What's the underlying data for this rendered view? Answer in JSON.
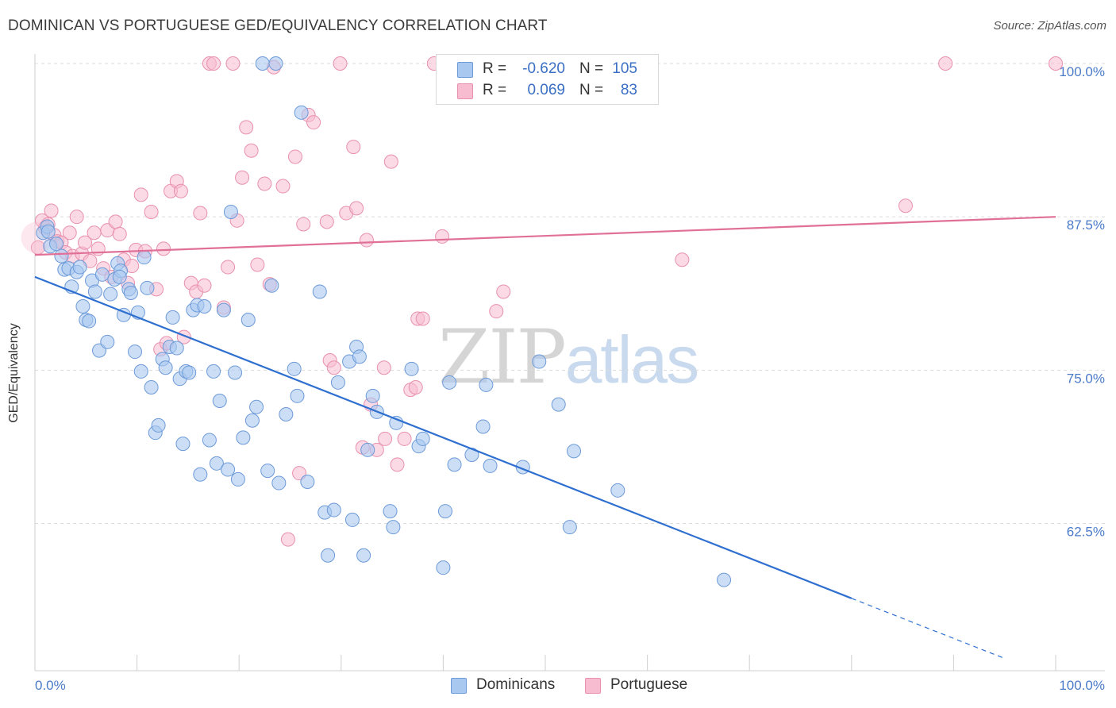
{
  "header": {
    "title": "DOMINICAN VS PORTUGUESE GED/EQUIVALENCY CORRELATION CHART",
    "source": "Source: ZipAtlas.com"
  },
  "watermark": {
    "zip": "ZIP",
    "atlas": "atlas"
  },
  "legend": {
    "rows": [
      {
        "r_label": "R =",
        "r_value": "-0.620",
        "n_label": "N =",
        "n_value": "105",
        "color": "#a8c8f0"
      },
      {
        "r_label": "R =",
        "r_value": "0.069",
        "n_label": "N =",
        "n_value": "83",
        "color": "#f8bcd0"
      }
    ]
  },
  "bottom_legend": {
    "series1": "Dominicans",
    "series2": "Portuguese"
  },
  "chart_data": {
    "type": "scatter",
    "title": "DOMINICAN VS PORTUGUESE GED/EQUIVALENCY CORRELATION CHART",
    "xlabel": "",
    "ylabel": "GED/Equivalency",
    "xlim": [
      0,
      100
    ],
    "ylim": [
      50.5,
      101
    ],
    "x_tick_labels": [
      "0.0%",
      "100.0%"
    ],
    "y_ticks": [
      62.5,
      75.0,
      87.5,
      100.0
    ],
    "y_tick_labels": [
      "62.5%",
      "75.0%",
      "87.5%",
      "100.0%"
    ],
    "grid": "horizontal dashed",
    "legend_position": "top-center",
    "colors": {
      "dominicans_fill": "#a8c8f0",
      "dominicans_stroke": "#6d9ad8",
      "dominicans_line": "#2e6fd0",
      "portuguese_fill": "#f8bcd0",
      "portuguese_stroke": "#e890ae",
      "portuguese_line": "#e07098"
    },
    "series": [
      {
        "name": "Dominicans",
        "r": -0.62,
        "n": 105,
        "trend": {
          "x0": 0,
          "y0": 82.6,
          "x1": 80,
          "y1": 56.4,
          "dash_to_x": 95,
          "dash_to_y": 51.5
        },
        "points": [
          [
            0.8,
            86.2
          ],
          [
            1.2,
            86.7
          ],
          [
            1.5,
            85.1
          ],
          [
            2.1,
            85.3
          ],
          [
            2.6,
            84.3
          ],
          [
            2.9,
            83.2
          ],
          [
            3.3,
            83.3
          ],
          [
            3.6,
            81.8
          ],
          [
            4.1,
            83.0
          ],
          [
            4.4,
            83.4
          ],
          [
            4.7,
            80.2
          ],
          [
            5.0,
            79.1
          ],
          [
            5.3,
            79.0
          ],
          [
            5.6,
            82.3
          ],
          [
            5.9,
            81.4
          ],
          [
            6.3,
            76.6
          ],
          [
            6.6,
            82.8
          ],
          [
            7.1,
            77.3
          ],
          [
            7.4,
            81.2
          ],
          [
            7.8,
            82.4
          ],
          [
            8.1,
            83.7
          ],
          [
            8.4,
            83.1
          ],
          [
            8.7,
            79.5
          ],
          [
            9.2,
            81.6
          ],
          [
            9.4,
            81.3
          ],
          [
            9.8,
            76.5
          ],
          [
            10.1,
            79.7
          ],
          [
            10.4,
            74.9
          ],
          [
            10.7,
            84.2
          ],
          [
            11.0,
            81.7
          ],
          [
            11.4,
            73.6
          ],
          [
            11.8,
            69.9
          ],
          [
            12.1,
            70.5
          ],
          [
            12.5,
            75.9
          ],
          [
            12.8,
            75.2
          ],
          [
            13.2,
            76.9
          ],
          [
            13.5,
            79.3
          ],
          [
            13.9,
            76.8
          ],
          [
            14.2,
            74.3
          ],
          [
            14.5,
            69.0
          ],
          [
            14.8,
            74.9
          ],
          [
            15.1,
            74.8
          ],
          [
            15.5,
            79.9
          ],
          [
            15.9,
            80.3
          ],
          [
            16.2,
            66.5
          ],
          [
            16.6,
            80.2
          ],
          [
            17.1,
            69.3
          ],
          [
            17.5,
            74.9
          ],
          [
            17.8,
            67.4
          ],
          [
            18.1,
            72.5
          ],
          [
            18.5,
            79.9
          ],
          [
            18.9,
            66.9
          ],
          [
            19.2,
            87.9
          ],
          [
            19.6,
            74.8
          ],
          [
            19.9,
            66.1
          ],
          [
            20.4,
            69.5
          ],
          [
            20.9,
            79.1
          ],
          [
            21.3,
            70.9
          ],
          [
            21.7,
            72.0
          ],
          [
            22.3,
            100.0
          ],
          [
            22.8,
            66.8
          ],
          [
            23.2,
            81.9
          ],
          [
            23.6,
            100.0
          ],
          [
            23.9,
            65.8
          ],
          [
            24.6,
            71.4
          ],
          [
            25.4,
            75.1
          ],
          [
            25.7,
            72.9
          ],
          [
            26.1,
            96.0
          ],
          [
            26.7,
            65.9
          ],
          [
            27.9,
            81.4
          ],
          [
            28.4,
            63.4
          ],
          [
            28.7,
            59.9
          ],
          [
            29.3,
            63.6
          ],
          [
            29.7,
            74.0
          ],
          [
            30.8,
            75.7
          ],
          [
            31.1,
            62.8
          ],
          [
            31.5,
            76.9
          ],
          [
            31.8,
            76.1
          ],
          [
            32.2,
            59.9
          ],
          [
            32.6,
            68.5
          ],
          [
            33.1,
            72.9
          ],
          [
            33.5,
            71.6
          ],
          [
            34.8,
            63.5
          ],
          [
            35.1,
            62.2
          ],
          [
            35.4,
            70.7
          ],
          [
            36.9,
            75.1
          ],
          [
            37.6,
            68.8
          ],
          [
            38.0,
            69.4
          ],
          [
            40.2,
            63.5
          ],
          [
            40.0,
            58.9
          ],
          [
            40.6,
            74.0
          ],
          [
            41.1,
            67.3
          ],
          [
            42.8,
            68.1
          ],
          [
            43.9,
            70.4
          ],
          [
            44.2,
            73.8
          ],
          [
            44.6,
            67.2
          ],
          [
            47.8,
            67.1
          ],
          [
            49.4,
            75.7
          ],
          [
            51.3,
            72.2
          ],
          [
            52.4,
            62.2
          ],
          [
            52.8,
            68.4
          ],
          [
            57.1,
            65.2
          ],
          [
            67.5,
            57.9
          ],
          [
            1.3,
            86.3
          ],
          [
            8.3,
            82.6
          ]
        ]
      },
      {
        "name": "Portuguese",
        "r": 0.069,
        "n": 83,
        "trend": {
          "x0": 0,
          "y0": 84.4,
          "x1": 100,
          "y1": 87.5
        },
        "points": [
          [
            0.3,
            85.0
          ],
          [
            0.7,
            87.2
          ],
          [
            1.0,
            86.6
          ],
          [
            1.3,
            86.9
          ],
          [
            1.6,
            88.0
          ],
          [
            1.9,
            86.0
          ],
          [
            2.2,
            85.5
          ],
          [
            2.6,
            85.4
          ],
          [
            3.0,
            84.6
          ],
          [
            3.4,
            86.2
          ],
          [
            3.7,
            84.3
          ],
          [
            4.1,
            87.5
          ],
          [
            4.6,
            84.5
          ],
          [
            4.9,
            85.4
          ],
          [
            5.4,
            83.9
          ],
          [
            5.8,
            86.2
          ],
          [
            6.2,
            84.9
          ],
          [
            6.7,
            83.3
          ],
          [
            7.1,
            86.4
          ],
          [
            7.5,
            82.6
          ],
          [
            7.9,
            87.1
          ],
          [
            8.3,
            86.1
          ],
          [
            8.7,
            84.0
          ],
          [
            9.1,
            82.1
          ],
          [
            9.5,
            83.5
          ],
          [
            9.9,
            84.8
          ],
          [
            10.4,
            89.3
          ],
          [
            10.8,
            84.7
          ],
          [
            11.4,
            87.9
          ],
          [
            11.9,
            81.6
          ],
          [
            12.3,
            76.7
          ],
          [
            12.6,
            84.9
          ],
          [
            12.9,
            77.2
          ],
          [
            13.3,
            89.6
          ],
          [
            13.9,
            90.4
          ],
          [
            14.3,
            89.6
          ],
          [
            14.6,
            77.7
          ],
          [
            15.3,
            82.1
          ],
          [
            15.8,
            81.4
          ],
          [
            16.2,
            87.8
          ],
          [
            16.6,
            81.9
          ],
          [
            17.1,
            100.0
          ],
          [
            17.5,
            100.0
          ],
          [
            18.5,
            80.1
          ],
          [
            18.9,
            83.4
          ],
          [
            19.4,
            100.0
          ],
          [
            19.8,
            87.2
          ],
          [
            20.3,
            90.7
          ],
          [
            20.7,
            94.8
          ],
          [
            21.2,
            92.9
          ],
          [
            21.8,
            83.6
          ],
          [
            22.5,
            90.2
          ],
          [
            23.0,
            82.0
          ],
          [
            23.4,
            99.7
          ],
          [
            24.3,
            90.0
          ],
          [
            24.8,
            61.2
          ],
          [
            25.5,
            92.4
          ],
          [
            25.9,
            66.6
          ],
          [
            26.3,
            86.9
          ],
          [
            26.8,
            95.8
          ],
          [
            27.3,
            95.2
          ],
          [
            28.6,
            87.1
          ],
          [
            28.9,
            75.8
          ],
          [
            29.3,
            75.2
          ],
          [
            29.9,
            100.0
          ],
          [
            30.5,
            87.8
          ],
          [
            31.2,
            93.2
          ],
          [
            31.5,
            88.2
          ],
          [
            32.1,
            68.7
          ],
          [
            32.5,
            85.6
          ],
          [
            32.9,
            72.2
          ],
          [
            33.5,
            68.5
          ],
          [
            34.3,
            69.4
          ],
          [
            34.9,
            92.0
          ],
          [
            35.5,
            67.3
          ],
          [
            36.2,
            69.4
          ],
          [
            36.8,
            73.4
          ],
          [
            37.5,
            79.2
          ],
          [
            38.0,
            79.2
          ],
          [
            39.9,
            85.9
          ],
          [
            45.2,
            79.8
          ],
          [
            45.9,
            81.4
          ],
          [
            85.3,
            88.4
          ]
        ],
        "extra_points": [
          [
            37.3,
            73.6
          ],
          [
            46.2,
            100.0
          ],
          [
            63.4,
            84.0
          ],
          [
            89.2,
            100.0
          ],
          [
            100,
            100.0
          ],
          [
            44.7,
            100.0
          ],
          [
            39.1,
            100.0
          ],
          [
            34.2,
            75.2
          ]
        ]
      }
    ]
  }
}
